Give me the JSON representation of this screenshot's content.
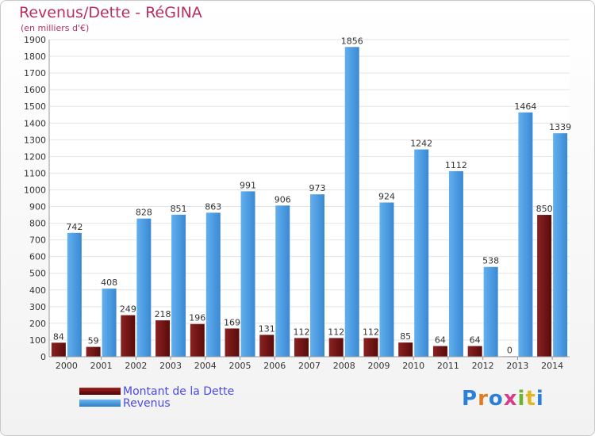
{
  "header": {
    "title": "Revenus/Dette - RéGINA",
    "subtitle": "(en milliers d'€)"
  },
  "legend": {
    "items": [
      {
        "label": "Montant de la Dette",
        "color": "#6e1010"
      },
      {
        "label": "Revenus",
        "color": "#3f93dc"
      }
    ]
  },
  "logo": {
    "text": "Proxiti"
  },
  "chart_data": {
    "type": "bar",
    "categories": [
      "2000",
      "2001",
      "2002",
      "2003",
      "2004",
      "2005",
      "2006",
      "2007",
      "2008",
      "2009",
      "2010",
      "2011",
      "2012",
      "2013",
      "2014"
    ],
    "series": [
      {
        "name": "Montant de la Dette",
        "color": "#6e1010",
        "values": [
          84,
          59,
          249,
          218,
          196,
          169,
          131,
          112,
          112,
          112,
          85,
          64,
          64,
          0,
          850
        ]
      },
      {
        "name": "Revenus",
        "color": "#3f93dc",
        "values": [
          742,
          408,
          828,
          851,
          863,
          991,
          906,
          973,
          1856,
          924,
          1242,
          1112,
          538,
          1464,
          1339
        ]
      }
    ],
    "ylim": [
      0,
      1900
    ],
    "yticks": [
      0,
      100,
      200,
      300,
      400,
      500,
      600,
      700,
      800,
      900,
      1000,
      1100,
      1200,
      1300,
      1400,
      1500,
      1600,
      1700,
      1800,
      1900
    ],
    "grid": true,
    "legend_position": "bottom-left"
  }
}
